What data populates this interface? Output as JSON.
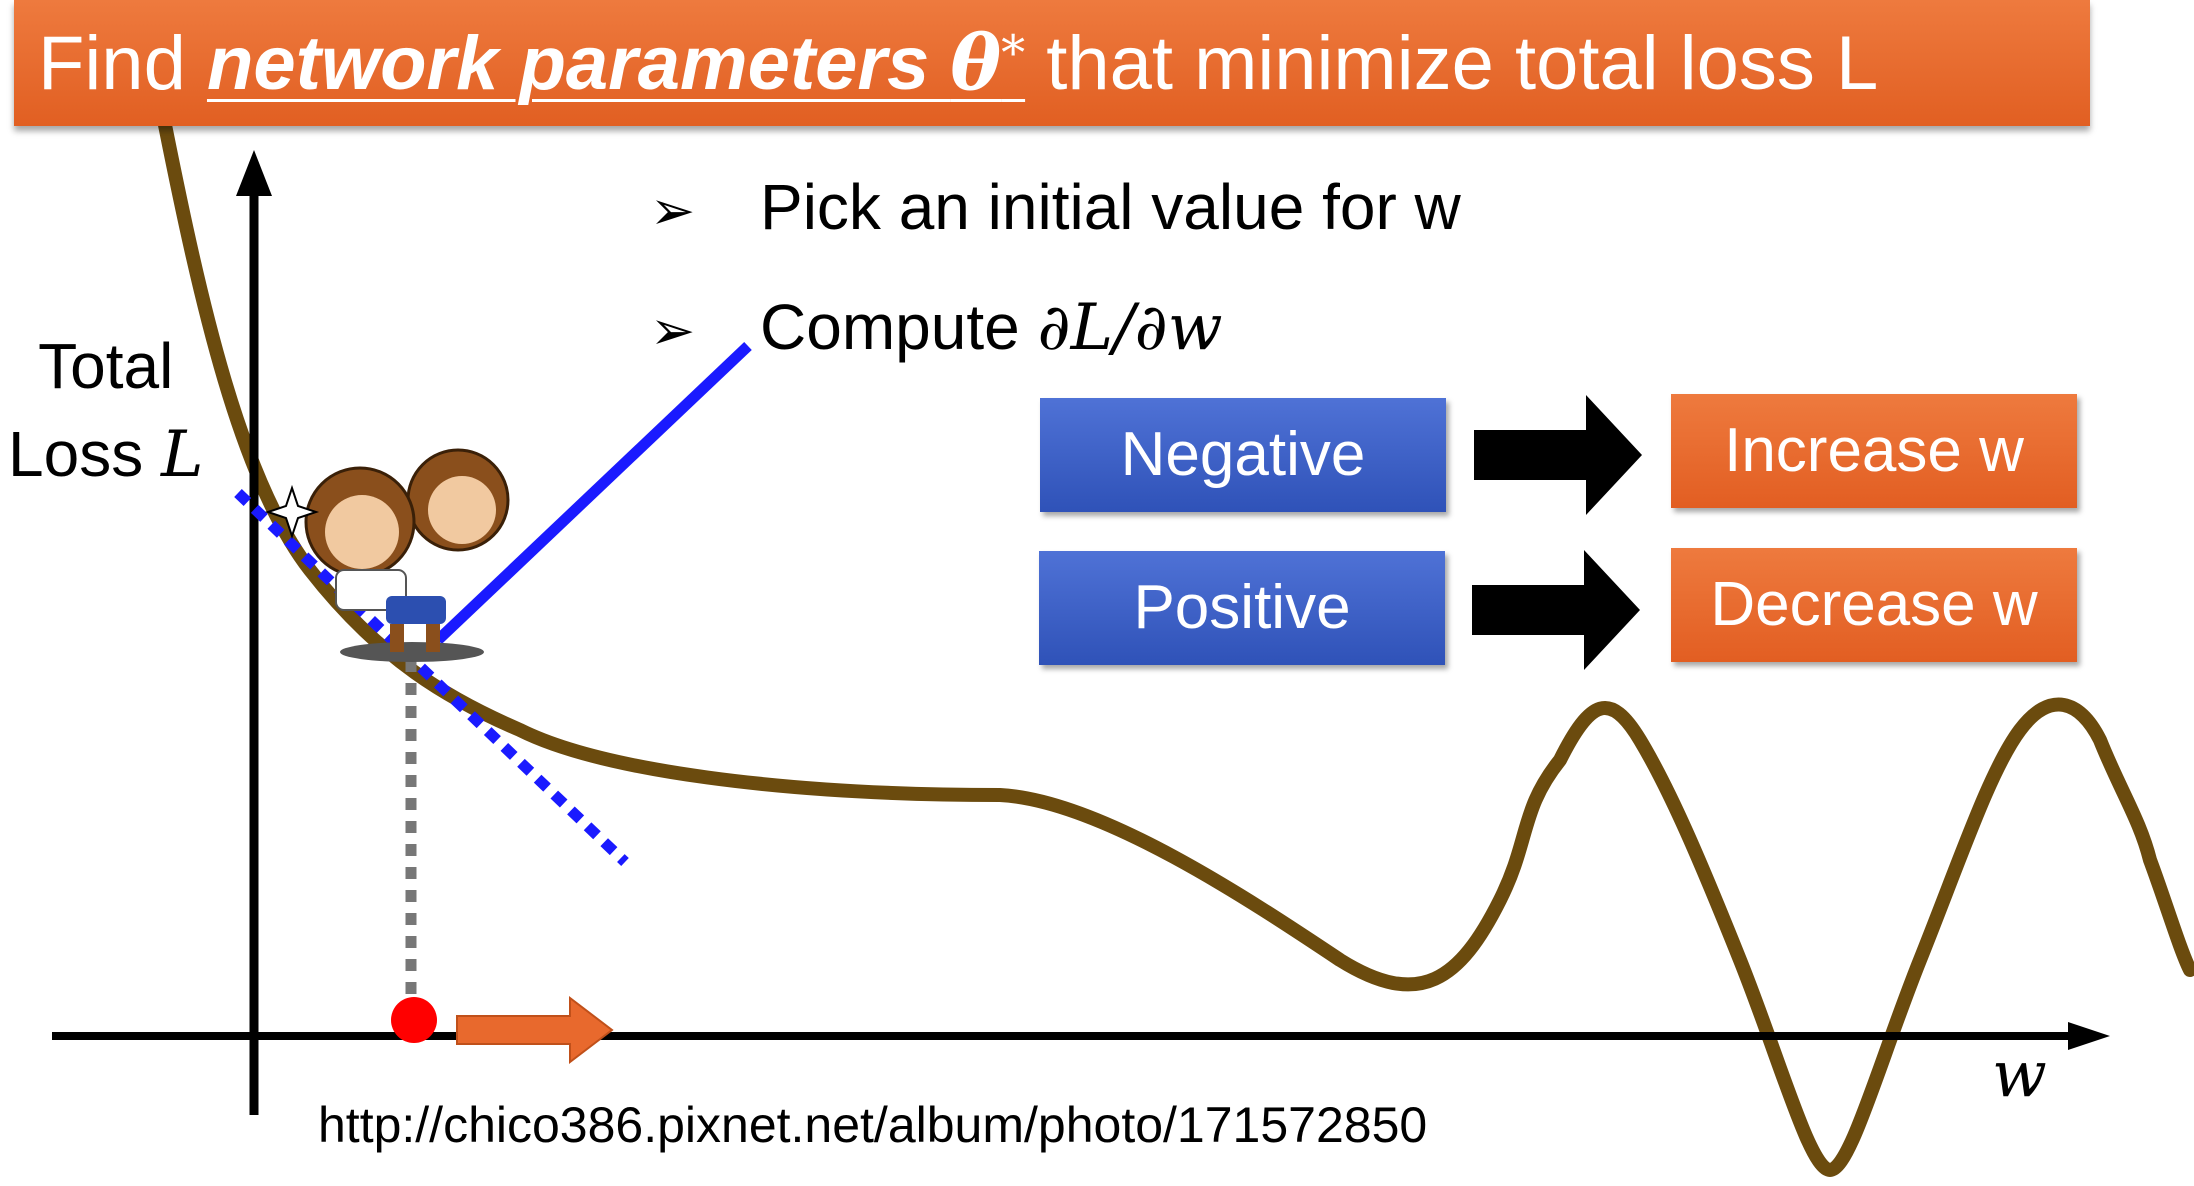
{
  "title": {
    "prefix": "Find ",
    "emphasis": "network parameters ",
    "theta": "θ",
    "superscript": "*",
    "suffix": " that minimize total loss L"
  },
  "bullets": [
    {
      "text": "Pick an initial value for w",
      "math": ""
    },
    {
      "text": "Compute ",
      "math": "∂L/∂w"
    }
  ],
  "bullet_marker": "➢",
  "y_axis": {
    "line1": "Total",
    "line2": "Loss ",
    "symbol": "L"
  },
  "x_axis": {
    "symbol": "w"
  },
  "rules": [
    {
      "condition": "Negative",
      "action": "Increase w"
    },
    {
      "condition": "Positive",
      "action": "Decrease w"
    }
  ],
  "source": "http://chico386.pixnet.net/album/photo/171572850",
  "colors": {
    "curve": "#6b4b0e",
    "tangent": "#1a1aff",
    "title_bg": "#e8692d",
    "box_blue": "#3a5bc7",
    "box_orange": "#e8692d",
    "point": "#ff0000",
    "move_arrow": "#e8692d"
  }
}
